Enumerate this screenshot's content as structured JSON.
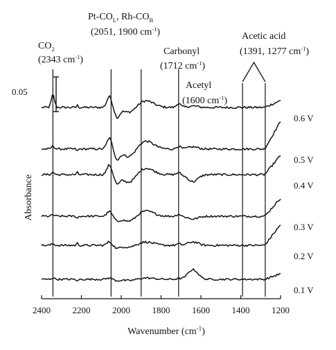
{
  "chart_data": {
    "type": "line",
    "xlabel": "Wavenumber",
    "xlabel_unit": "(cm",
    "xlabel_unit_sup": "-1",
    "xlabel_unit_close": ")",
    "ylabel": "Absorbance",
    "x_reversed": true,
    "xlim": [
      2400,
      1200
    ],
    "x_ticks": [
      2400,
      2200,
      2000,
      1800,
      1600,
      1400,
      1200
    ],
    "y_ticks_shown": false,
    "grid": false,
    "scale_bar": {
      "label": "0.05",
      "value": 0.05
    },
    "series": [
      {
        "name": "0.6 V",
        "potential": 0.6
      },
      {
        "name": "0.5 V",
        "potential": 0.5
      },
      {
        "name": "0.4 V",
        "potential": 0.4
      },
      {
        "name": "0.3 V",
        "potential": 0.3
      },
      {
        "name": "0.2 V",
        "potential": 0.2
      },
      {
        "name": "0.1 V",
        "potential": 0.1
      }
    ],
    "reference_lines": [
      2343,
      2051,
      1900,
      1712,
      1391,
      1277
    ],
    "annotations": [
      {
        "id": "co2",
        "line1_main": "CO",
        "line1_sub": "2",
        "line2_main": "(2343 cm",
        "line2_sup": "-1",
        "line2_close": ")"
      },
      {
        "id": "pt-rh",
        "line1_a": "Pt-CO",
        "line1_a_sub": "L",
        "line1_b": ", Rh-CO",
        "line1_b_sub": "B",
        "line2_main": "(2051, 1900 cm",
        "line2_sup": "-1",
        "line2_close": ")"
      },
      {
        "id": "carbonyl",
        "line1": "Carbonyl",
        "line2_main": "(1712 cm",
        "line2_sup": "-1",
        "line2_close": ")"
      },
      {
        "id": "acetyl",
        "line1": "Acetyl",
        "line2_main": "(1600 cm",
        "line2_sup": "-1",
        "line2_close": ")"
      },
      {
        "id": "acetic",
        "line1": "Acetic acid",
        "line2_main": "(1391, 1277 cm",
        "line2_sup": "-1",
        "line2_close": ")"
      }
    ]
  }
}
